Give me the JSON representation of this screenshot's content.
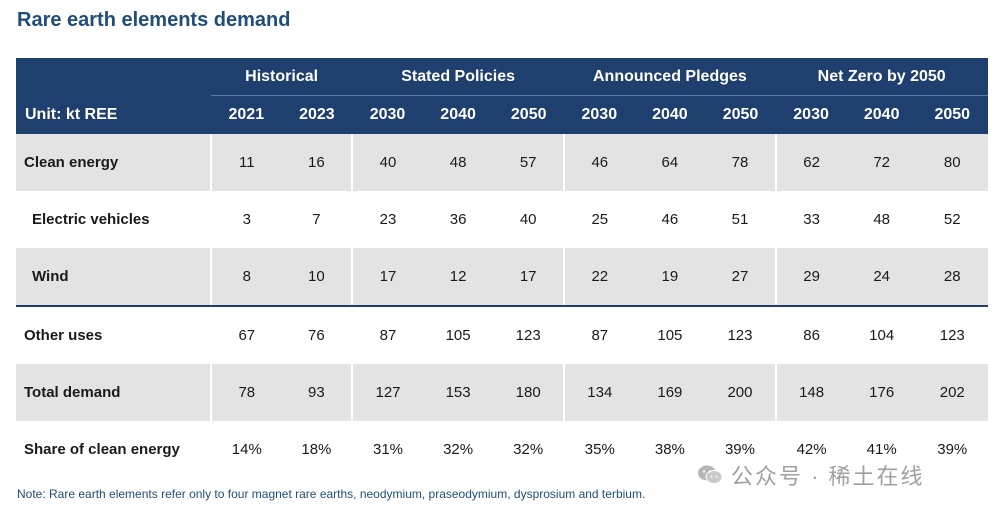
{
  "title": "Rare earth elements demand",
  "unit_label": "Unit: kt REE",
  "groups": [
    "Historical",
    "Stated Policies",
    "Announced Pledges",
    "Net Zero by 2050"
  ],
  "years": [
    "2021",
    "2023",
    "2030",
    "2040",
    "2050",
    "2030",
    "2040",
    "2050",
    "2030",
    "2040",
    "2050"
  ],
  "rows": [
    {
      "label": "Clean energy",
      "values": [
        "11",
        "16",
        "40",
        "48",
        "57",
        "46",
        "64",
        "78",
        "62",
        "72",
        "80"
      ]
    },
    {
      "label": "Electric vehicles",
      "values": [
        "3",
        "7",
        "23",
        "36",
        "40",
        "25",
        "46",
        "51",
        "33",
        "48",
        "52"
      ]
    },
    {
      "label": "Wind",
      "values": [
        "8",
        "10",
        "17",
        "12",
        "17",
        "22",
        "19",
        "27",
        "29",
        "24",
        "28"
      ]
    },
    {
      "label": "Other uses",
      "values": [
        "67",
        "76",
        "87",
        "105",
        "123",
        "87",
        "105",
        "123",
        "86",
        "104",
        "123"
      ]
    },
    {
      "label": "Total demand",
      "values": [
        "78",
        "93",
        "127",
        "153",
        "180",
        "134",
        "169",
        "200",
        "148",
        "176",
        "202"
      ]
    },
    {
      "label": "Share of clean energy",
      "values": [
        "14%",
        "18%",
        "31%",
        "32%",
        "32%",
        "35%",
        "38%",
        "39%",
        "42%",
        "41%",
        "39%"
      ]
    }
  ],
  "note": "Note: Rare earth elements refer only to four magnet rare earths, neodymium, praseodymium, dysprosium and terbium.",
  "watermark": {
    "text": "公众号 · 稀土在线",
    "icon": "wechat-icon"
  },
  "colors": {
    "header": "#1f3f6f",
    "title": "#1f4e79",
    "shade": "#e3e3e3"
  }
}
